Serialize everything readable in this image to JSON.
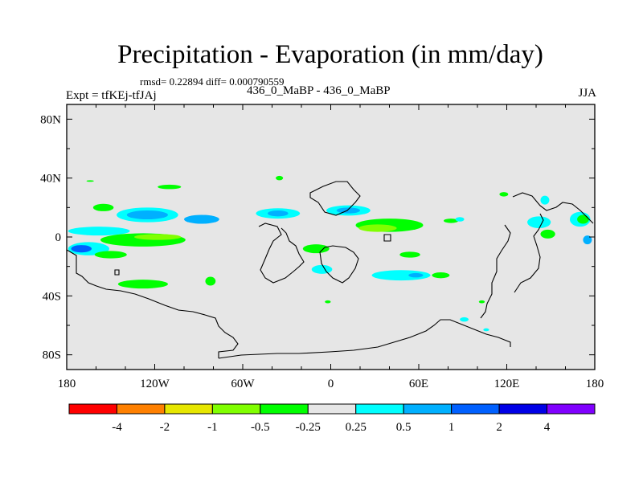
{
  "chart_data": {
    "type": "heatmap",
    "title": "Precipitation - Evaporation (in mm/day)",
    "stats_text": "rmsd= 0.22894 diff= 0.000790559",
    "experiment_label": "Expt = tfKEj-tfJAj",
    "runs_label": "436_0_MaBP - 436_0_MaBP",
    "season": "JJA",
    "x_ticks": [
      "180",
      "120W",
      "60W",
      "0",
      "60E",
      "120E",
      "180"
    ],
    "y_ticks": [
      "80N",
      "40N",
      "0",
      "40S",
      "80S"
    ],
    "xlim": [
      -180,
      180
    ],
    "ylim": [
      -90,
      90
    ],
    "colorbar": {
      "labels": [
        "-4",
        "-2",
        "-1",
        "-0.5",
        "-0.25",
        "0.25",
        "0.5",
        "1",
        "2",
        "4"
      ],
      "colors": [
        "#ff0000",
        "#ff8000",
        "#e6e600",
        "#80ff00",
        "#00ff00",
        "#e6e6e6",
        "#00ffff",
        "#00b0ff",
        "#0060ff",
        "#0000e6",
        "#8000ff"
      ]
    },
    "anomalies": [
      {
        "lon": -158,
        "lat": 4,
        "w": 42,
        "h": 6,
        "c": "#00ffff"
      },
      {
        "lon": -125,
        "lat": 15,
        "w": 42,
        "h": 10,
        "c": "#00ffff"
      },
      {
        "lon": -125,
        "lat": 15,
        "w": 28,
        "h": 6,
        "c": "#00b0ff"
      },
      {
        "lon": -88,
        "lat": 12,
        "w": 24,
        "h": 6,
        "c": "#00b0ff"
      },
      {
        "lon": -128,
        "lat": -2,
        "w": 58,
        "h": 9,
        "c": "#00ff00"
      },
      {
        "lon": -118,
        "lat": 0,
        "w": 32,
        "h": 4,
        "c": "#80ff00"
      },
      {
        "lon": -165,
        "lat": -8,
        "w": 28,
        "h": 9,
        "c": "#00ffff"
      },
      {
        "lon": -170,
        "lat": -8,
        "w": 14,
        "h": 5,
        "c": "#0060ff"
      },
      {
        "lon": -150,
        "lat": -12,
        "w": 22,
        "h": 5,
        "c": "#00ff00"
      },
      {
        "lon": -128,
        "lat": -32,
        "w": 34,
        "h": 6,
        "c": "#00ff00"
      },
      {
        "lon": -82,
        "lat": -30,
        "w": 7,
        "h": 6,
        "c": "#00ff00"
      },
      {
        "lon": -110,
        "lat": 34,
        "w": 16,
        "h": 3,
        "c": "#00ff00"
      },
      {
        "lon": -155,
        "lat": 20,
        "w": 14,
        "h": 5,
        "c": "#00ff00"
      },
      {
        "lon": -36,
        "lat": 16,
        "w": 30,
        "h": 7,
        "c": "#00ffff"
      },
      {
        "lon": -36,
        "lat": 16,
        "w": 14,
        "h": 4,
        "c": "#00b0ff"
      },
      {
        "lon": -10,
        "lat": -8,
        "w": 18,
        "h": 6,
        "c": "#00ff00"
      },
      {
        "lon": -6,
        "lat": -22,
        "w": 14,
        "h": 6,
        "c": "#00ffff"
      },
      {
        "lon": 12,
        "lat": 18,
        "w": 30,
        "h": 7,
        "c": "#00ffff"
      },
      {
        "lon": 12,
        "lat": 18,
        "w": 16,
        "h": 4,
        "c": "#00b0ff"
      },
      {
        "lon": 40,
        "lat": 8,
        "w": 46,
        "h": 9,
        "c": "#00ff00"
      },
      {
        "lon": 32,
        "lat": 6,
        "w": 26,
        "h": 5,
        "c": "#80ff00"
      },
      {
        "lon": 54,
        "lat": -12,
        "w": 14,
        "h": 4,
        "c": "#00ff00"
      },
      {
        "lon": 48,
        "lat": -26,
        "w": 40,
        "h": 7,
        "c": "#00ffff"
      },
      {
        "lon": 58,
        "lat": -26,
        "w": 10,
        "h": 3,
        "c": "#00b0ff"
      },
      {
        "lon": 75,
        "lat": -26,
        "w": 12,
        "h": 4,
        "c": "#00ff00"
      },
      {
        "lon": 82,
        "lat": 11,
        "w": 10,
        "h": 3,
        "c": "#00ff00"
      },
      {
        "lon": 88,
        "lat": 12,
        "w": 6,
        "h": 3,
        "c": "#00ffff"
      },
      {
        "lon": 118,
        "lat": 29,
        "w": 6,
        "h": 3,
        "c": "#00ff00"
      },
      {
        "lon": 146,
        "lat": 25,
        "w": 6,
        "h": 6,
        "c": "#00ffff"
      },
      {
        "lon": 142,
        "lat": 10,
        "w": 16,
        "h": 8,
        "c": "#00ffff"
      },
      {
        "lon": 148,
        "lat": 2,
        "w": 10,
        "h": 6,
        "c": "#00ff00"
      },
      {
        "lon": 170,
        "lat": 12,
        "w": 14,
        "h": 10,
        "c": "#00ffff"
      },
      {
        "lon": 172,
        "lat": 12,
        "w": 8,
        "h": 6,
        "c": "#00ff00"
      },
      {
        "lon": 175,
        "lat": -2,
        "w": 6,
        "h": 6,
        "c": "#00b0ff"
      },
      {
        "lon": -35,
        "lat": 40,
        "w": 5,
        "h": 3,
        "c": "#00ff00"
      },
      {
        "lon": -164,
        "lat": 38,
        "w": 5,
        "h": 1,
        "c": "#00ff00"
      },
      {
        "lon": -2,
        "lat": -44,
        "w": 4,
        "h": 2,
        "c": "#00ff00"
      },
      {
        "lon": 91,
        "lat": -56,
        "w": 6,
        "h": 3,
        "c": "#00ffff"
      },
      {
        "lon": 106,
        "lat": -63,
        "w": 4,
        "h": 2,
        "c": "#00ffff"
      },
      {
        "lon": 103,
        "lat": -44,
        "w": 4,
        "h": 2,
        "c": "#00ff00"
      }
    ]
  }
}
